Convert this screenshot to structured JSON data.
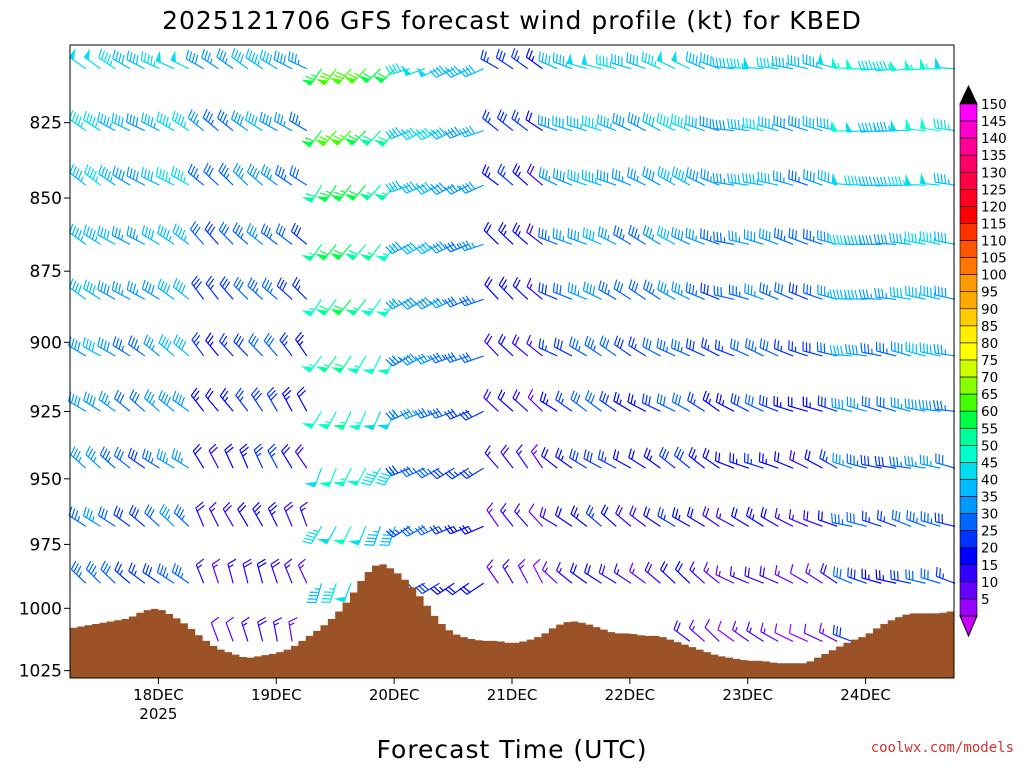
{
  "chart_data": {
    "type": "wind_profile",
    "title": "2025121706 GFS forecast wind profile (kt) for KBED",
    "xlabel": "Forecast Time (UTC)",
    "ylabel": "",
    "y_axis": {
      "ticks": [
        825,
        850,
        875,
        900,
        925,
        950,
        975,
        1000,
        1025
      ],
      "range_hpa": [
        800,
        1028
      ],
      "log_scale": true
    },
    "x_axis": {
      "ticks": [
        {
          "hour": 18,
          "label": "18DEC",
          "sublabel": "2025"
        },
        {
          "hour": 42,
          "label": "19DEC",
          "sublabel": ""
        },
        {
          "hour": 66,
          "label": "20DEC",
          "sublabel": ""
        },
        {
          "hour": 90,
          "label": "21DEC",
          "sublabel": ""
        },
        {
          "hour": 114,
          "label": "22DEC",
          "sublabel": ""
        },
        {
          "hour": 138,
          "label": "23DEC",
          "sublabel": ""
        },
        {
          "hour": 162,
          "label": "24DEC",
          "sublabel": ""
        }
      ],
      "range_hours": [
        0,
        180
      ]
    },
    "levels_hpa": [
      805,
      825,
      843,
      863,
      882,
      902,
      922,
      943,
      965,
      987,
      1010
    ],
    "time_step_hours": 3,
    "surface_pressure": [
      {
        "h": 0,
        "p": 1008
      },
      {
        "h": 6,
        "p": 1006
      },
      {
        "h": 12,
        "p": 1004
      },
      {
        "h": 15,
        "p": 1001
      },
      {
        "h": 18,
        "p": 1000
      },
      {
        "h": 21,
        "p": 1003
      },
      {
        "h": 24,
        "p": 1007
      },
      {
        "h": 27,
        "p": 1012
      },
      {
        "h": 30,
        "p": 1016
      },
      {
        "h": 33,
        "p": 1018
      },
      {
        "h": 36,
        "p": 1020
      },
      {
        "h": 39,
        "p": 1019
      },
      {
        "h": 42,
        "p": 1018
      },
      {
        "h": 45,
        "p": 1016
      },
      {
        "h": 48,
        "p": 1012
      },
      {
        "h": 51,
        "p": 1008
      },
      {
        "h": 54,
        "p": 1003
      },
      {
        "h": 57,
        "p": 996
      },
      {
        "h": 60,
        "p": 987
      },
      {
        "h": 63,
        "p": 982
      },
      {
        "h": 66,
        "p": 985
      },
      {
        "h": 69,
        "p": 990
      },
      {
        "h": 72,
        "p": 997
      },
      {
        "h": 75,
        "p": 1005
      },
      {
        "h": 78,
        "p": 1010
      },
      {
        "h": 81,
        "p": 1012
      },
      {
        "h": 84,
        "p": 1013
      },
      {
        "h": 87,
        "p": 1013
      },
      {
        "h": 90,
        "p": 1014
      },
      {
        "h": 93,
        "p": 1013
      },
      {
        "h": 96,
        "p": 1011
      },
      {
        "h": 99,
        "p": 1007
      },
      {
        "h": 102,
        "p": 1005
      },
      {
        "h": 105,
        "p": 1006
      },
      {
        "h": 108,
        "p": 1008
      },
      {
        "h": 111,
        "p": 1010
      },
      {
        "h": 114,
        "p": 1010
      },
      {
        "h": 117,
        "p": 1011
      },
      {
        "h": 120,
        "p": 1011
      },
      {
        "h": 123,
        "p": 1013
      },
      {
        "h": 126,
        "p": 1015
      },
      {
        "h": 129,
        "p": 1017
      },
      {
        "h": 132,
        "p": 1019
      },
      {
        "h": 135,
        "p": 1020
      },
      {
        "h": 138,
        "p": 1021
      },
      {
        "h": 141,
        "p": 1021
      },
      {
        "h": 144,
        "p": 1022
      },
      {
        "h": 147,
        "p": 1022
      },
      {
        "h": 150,
        "p": 1022
      },
      {
        "h": 153,
        "p": 1019
      },
      {
        "h": 156,
        "p": 1016
      },
      {
        "h": 159,
        "p": 1013
      },
      {
        "h": 162,
        "p": 1011
      },
      {
        "h": 165,
        "p": 1007
      },
      {
        "h": 168,
        "p": 1004
      },
      {
        "h": 171,
        "p": 1002
      },
      {
        "h": 174,
        "p": 1002
      },
      {
        "h": 177,
        "p": 1002
      },
      {
        "h": 180,
        "p": 1001
      }
    ],
    "wind_regimes": [
      {
        "from_h": 0,
        "to_h": 24,
        "top_kt": 45,
        "bottom_kt": 28,
        "dir_top": 300,
        "dir_bottom": 310
      },
      {
        "from_h": 24,
        "to_h": 48,
        "top_kt": 40,
        "bottom_kt": 15,
        "dir_top": 300,
        "dir_bottom": 345
      },
      {
        "from_h": 48,
        "to_h": 66,
        "top_kt": 65,
        "bottom_kt": 42,
        "dir_top": 220,
        "dir_bottom": 200
      },
      {
        "from_h": 66,
        "to_h": 84,
        "top_kt": 45,
        "bottom_kt": 22,
        "dir_top": 250,
        "dir_bottom": 240
      },
      {
        "from_h": 84,
        "to_h": 96,
        "top_kt": 25,
        "bottom_kt": 10,
        "dir_top": 300,
        "dir_bottom": 330
      },
      {
        "from_h": 96,
        "to_h": 132,
        "top_kt": 45,
        "bottom_kt": 15,
        "dir_top": 290,
        "dir_bottom": 310
      },
      {
        "from_h": 132,
        "to_h": 156,
        "top_kt": 45,
        "bottom_kt": 12,
        "dir_top": 280,
        "dir_bottom": 300
      },
      {
        "from_h": 156,
        "to_h": 180,
        "top_kt": 50,
        "bottom_kt": 25,
        "dir_top": 270,
        "dir_bottom": 290
      }
    ],
    "colorbar": {
      "labels": [
        150,
        145,
        140,
        135,
        130,
        125,
        120,
        115,
        110,
        105,
        100,
        95,
        90,
        85,
        80,
        75,
        70,
        65,
        60,
        55,
        50,
        45,
        40,
        35,
        30,
        25,
        20,
        15,
        10,
        5
      ],
      "colors": [
        "#ff00ff",
        "#ff00cc",
        "#ff0099",
        "#ff0066",
        "#ff0044",
        "#ff0022",
        "#ff0000",
        "#ff3300",
        "#ff5500",
        "#ff7700",
        "#ff9900",
        "#ffaa00",
        "#ffcc00",
        "#ffee00",
        "#ffff00",
        "#ccff00",
        "#88ff00",
        "#44ff00",
        "#00ff44",
        "#00ff99",
        "#00ffcc",
        "#00ddee",
        "#00bbff",
        "#0099ff",
        "#0066ff",
        "#0033ff",
        "#0000ff",
        "#3300ff",
        "#6600ff",
        "#9900ff"
      ],
      "top_color": "#000000",
      "bottom_color": "#cc00ff"
    },
    "terrain_color": "#9c5227"
  },
  "credit": "coolwx.com/models"
}
